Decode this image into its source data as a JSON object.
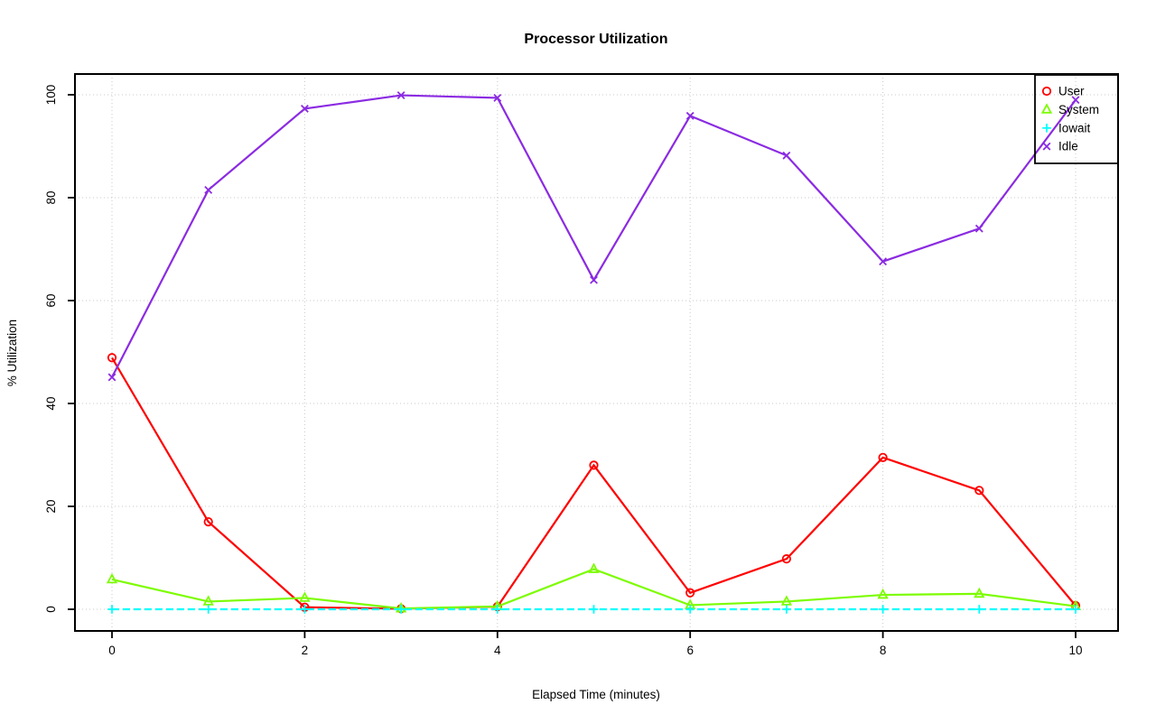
{
  "window": {
    "background_color": "#ffffff"
  },
  "chart_data": {
    "type": "line",
    "title": "Processor Utilization",
    "xlabel": "Elapsed Time (minutes)",
    "ylabel": "% Utilization",
    "x": [
      0,
      1,
      2,
      3,
      4,
      5,
      6,
      7,
      8,
      9,
      10
    ],
    "xticks": [
      0,
      2,
      4,
      6,
      8,
      10
    ],
    "yticks": [
      0,
      20,
      40,
      60,
      80,
      100
    ],
    "xlim": [
      -0.4,
      10.45
    ],
    "ylim": [
      -4.2,
      104
    ],
    "grid": true,
    "grid_style": "dotted",
    "grid_color": "#c9c9c9",
    "axis_color": "#000000",
    "legend_position": "topright",
    "legend_border": true,
    "series": [
      {
        "name": "User",
        "color": "#ff0000",
        "marker": "circle",
        "line_style": "solid",
        "values": [
          48.9,
          17,
          0.4,
          0.1,
          0.5,
          28,
          3.2,
          9.8,
          29.5,
          23.1,
          0.7
        ]
      },
      {
        "name": "System",
        "color": "#7cfc00",
        "marker": "triangle",
        "line_style": "solid",
        "values": [
          5.8,
          1.5,
          2.2,
          0.15,
          0.55,
          7.8,
          0.8,
          1.5,
          2.8,
          3,
          0.6
        ]
      },
      {
        "name": "Iowait",
        "color": "#00ffff",
        "marker": "plus",
        "line_style": "dashed",
        "values": [
          0,
          0,
          0,
          0,
          0,
          0,
          0,
          0,
          0,
          0,
          0
        ]
      },
      {
        "name": "Idle",
        "color": "#8b2be2",
        "marker": "x",
        "line_style": "solid",
        "values": [
          45.1,
          81.5,
          97.3,
          99.9,
          99.4,
          64,
          95.9,
          88.2,
          67.6,
          74,
          99
        ]
      }
    ]
  }
}
